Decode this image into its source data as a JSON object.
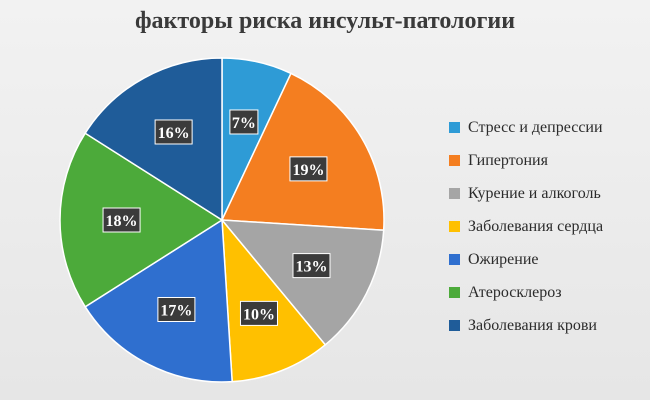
{
  "chart_data": {
    "type": "pie",
    "title": "факторы риска инсульт-патологии",
    "legend_position": "right",
    "slices": [
      {
        "label": "Стресс и депрессии",
        "value": 7,
        "display": "7%",
        "color": "#2e9bd6"
      },
      {
        "label": "Гипертония",
        "value": 19,
        "display": "19%",
        "color": "#f47e20"
      },
      {
        "label": "Курение и алкоголь",
        "value": 13,
        "display": "13%",
        "color": "#a5a5a5"
      },
      {
        "label": "Заболевания сердца",
        "value": 10,
        "display": "10%",
        "color": "#ffc000"
      },
      {
        "label": "Ожирение",
        "value": 17,
        "display": "17%",
        "color": "#2f6fcf"
      },
      {
        "label": "Атеросклероз",
        "value": 18,
        "display": "18%",
        "color": "#4caa3a"
      },
      {
        "label": "Заболевания крови",
        "value": 16,
        "display": "16%",
        "color": "#1f5c99"
      }
    ]
  }
}
